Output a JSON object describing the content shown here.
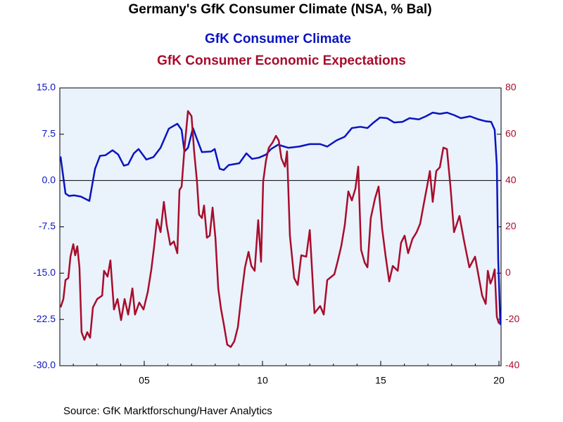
{
  "chart_data": {
    "type": "line",
    "title": "Germany's GfK Consumer Climate (NSA, % Bal)",
    "source": "Source:  GfK Marktforschung/Haver Analytics",
    "xlim": [
      2001.43,
      2020.09
    ],
    "xticks": [
      {
        "value": 2005,
        "label": "05"
      },
      {
        "value": 2010,
        "label": "10"
      },
      {
        "value": 2015,
        "label": "15"
      },
      {
        "value": 2020,
        "label": "20"
      }
    ],
    "ylim": [
      -30,
      15
    ],
    "yticks": [
      {
        "value": 15,
        "label": "15.0"
      },
      7.5,
      {
        "value": 0,
        "label": "0.0"
      },
      -7.5,
      {
        "value": -15,
        "label": "-15.0"
      },
      -22.5,
      {
        "value": -30,
        "label": "-30.0"
      }
    ],
    "y2lim": [
      -40,
      80
    ],
    "y2ticks": [
      80,
      60,
      40,
      20,
      0,
      -20,
      -40
    ],
    "zero_line": true,
    "series": [
      {
        "name": "GfK Consumer Climate",
        "color": "#0a14c0",
        "x": [
          2001.46,
          2001.67,
          2001.82,
          2002.03,
          2002.32,
          2002.68,
          2002.92,
          2003.13,
          2003.36,
          2003.66,
          2003.9,
          2004.14,
          2004.32,
          2004.56,
          2004.76,
          2005.09,
          2005.39,
          2005.69,
          2006.04,
          2006.4,
          2006.58,
          2006.7,
          2006.85,
          2007.06,
          2007.23,
          2007.44,
          2007.83,
          2007.98,
          2008.19,
          2008.36,
          2008.57,
          2009.02,
          2009.32,
          2009.56,
          2009.85,
          2010.15,
          2010.36,
          2010.66,
          2011.1,
          2011.55,
          2012.0,
          2012.44,
          2012.74,
          2013.13,
          2013.48,
          2013.78,
          2014.14,
          2014.44,
          2014.67,
          2014.97,
          2015.27,
          2015.57,
          2015.92,
          2016.22,
          2016.61,
          2016.91,
          2017.2,
          2017.5,
          2017.8,
          2018.1,
          2018.39,
          2018.78,
          2019.14,
          2019.44,
          2019.67,
          2019.82,
          2019.91,
          2019.97,
          2020.06
        ],
        "values": [
          3.9,
          -2.1,
          -2.5,
          -2.4,
          -2.6,
          -3.3,
          1.9,
          4.0,
          4.1,
          4.9,
          4.2,
          2.4,
          2.6,
          4.4,
          5.1,
          3.4,
          3.8,
          5.3,
          8.4,
          9.2,
          8.2,
          4.7,
          5.3,
          8.5,
          6.7,
          4.6,
          4.7,
          5.1,
          1.9,
          1.7,
          2.5,
          2.8,
          4.4,
          3.5,
          3.7,
          4.2,
          5.1,
          5.8,
          5.3,
          5.5,
          5.9,
          5.9,
          5.5,
          6.5,
          7.1,
          8.5,
          8.7,
          8.5,
          9.3,
          10.2,
          10.1,
          9.4,
          9.5,
          10.1,
          9.9,
          10.4,
          11.0,
          10.8,
          11.0,
          10.6,
          10.1,
          10.4,
          9.9,
          9.6,
          9.5,
          8.2,
          2.5,
          -12.9,
          -23.4
        ]
      },
      {
        "name": "GfK Consumer Economic Expectations",
        "color": "#a80c2c",
        "axis": "y2",
        "x": [
          2001.46,
          2001.58,
          2001.67,
          2001.79,
          2001.88,
          2002.0,
          2002.08,
          2002.17,
          2002.26,
          2002.35,
          2002.47,
          2002.59,
          2002.71,
          2002.83,
          2003.01,
          2003.22,
          2003.3,
          2003.45,
          2003.57,
          2003.72,
          2003.87,
          2004.02,
          2004.17,
          2004.32,
          2004.5,
          2004.61,
          2004.79,
          2004.97,
          2005.15,
          2005.3,
          2005.42,
          2005.54,
          2005.69,
          2005.83,
          2005.95,
          2006.1,
          2006.25,
          2006.4,
          2006.49,
          2006.58,
          2006.7,
          2006.85,
          2007.0,
          2007.11,
          2007.23,
          2007.32,
          2007.44,
          2007.53,
          2007.65,
          2007.77,
          2007.89,
          2008.01,
          2008.13,
          2008.25,
          2008.36,
          2008.51,
          2008.66,
          2008.81,
          2008.96,
          2009.11,
          2009.26,
          2009.41,
          2009.53,
          2009.67,
          2009.82,
          2009.94,
          2010.03,
          2010.15,
          2010.27,
          2010.42,
          2010.57,
          2010.69,
          2010.8,
          2010.95,
          2011.04,
          2011.16,
          2011.34,
          2011.49,
          2011.64,
          2011.85,
          2012.0,
          2012.2,
          2012.44,
          2012.59,
          2012.74,
          2013.04,
          2013.19,
          2013.33,
          2013.48,
          2013.63,
          2013.78,
          2013.93,
          2014.05,
          2014.17,
          2014.32,
          2014.44,
          2014.58,
          2014.76,
          2014.91,
          2015.06,
          2015.21,
          2015.36,
          2015.51,
          2015.72,
          2015.86,
          2016.01,
          2016.16,
          2016.34,
          2016.52,
          2016.67,
          2016.82,
          2016.96,
          2017.08,
          2017.2,
          2017.35,
          2017.5,
          2017.65,
          2017.8,
          2017.95,
          2018.1,
          2018.25,
          2018.33,
          2018.54,
          2018.75,
          2018.99,
          2019.29,
          2019.44,
          2019.53,
          2019.64,
          2019.73,
          2019.82,
          2019.91,
          2020.0
        ],
        "values": [
          -14.8,
          -11.2,
          -3,
          -2.1,
          7.1,
          12.5,
          7.7,
          11.6,
          2.5,
          -25.5,
          -28.8,
          -25.5,
          -27.9,
          -14.8,
          -11.2,
          -9.7,
          1.0,
          -1.5,
          5.5,
          -15.7,
          -11.2,
          -20.3,
          -11.2,
          -17.9,
          -6.6,
          -17.9,
          -12.7,
          -15.7,
          -8.1,
          1.6,
          11.6,
          23.2,
          17.7,
          30.8,
          20.7,
          12.2,
          13.7,
          8.6,
          35.9,
          37.4,
          53.6,
          70,
          67.8,
          52.6,
          39.6,
          25.3,
          23.8,
          29.2,
          15.3,
          16.2,
          28.3,
          15.3,
          -6.6,
          -15.7,
          -21.8,
          -30.9,
          -31.9,
          -29.4,
          -23.3,
          -9.7,
          2.5,
          9.2,
          3.1,
          1.0,
          22.9,
          4.9,
          39.6,
          48.7,
          54.2,
          56.3,
          59.3,
          57.2,
          49.6,
          46,
          52.6,
          16.2,
          -2.1,
          -5.1,
          7.7,
          7.1,
          18.6,
          -17.3,
          -14.2,
          -17.9,
          -3,
          -0.5,
          5.5,
          11.6,
          20.7,
          35.3,
          31.4,
          36.5,
          46,
          10.1,
          4.6,
          2.5,
          23.8,
          32.3,
          37.4,
          19.2,
          7.1,
          -3.6,
          3.1,
          1.0,
          13.1,
          16.2,
          8.6,
          14.7,
          17.7,
          21.4,
          29.8,
          37.4,
          44.1,
          30.8,
          44.1,
          45.7,
          54.2,
          53.6,
          37.4,
          17.7,
          22.2,
          24.7,
          13.1,
          2.5,
          7.1,
          -9.7,
          -13.3,
          1.0,
          -4.5,
          -2.1,
          1.6,
          -18.8,
          -21.8
        ]
      }
    ]
  }
}
